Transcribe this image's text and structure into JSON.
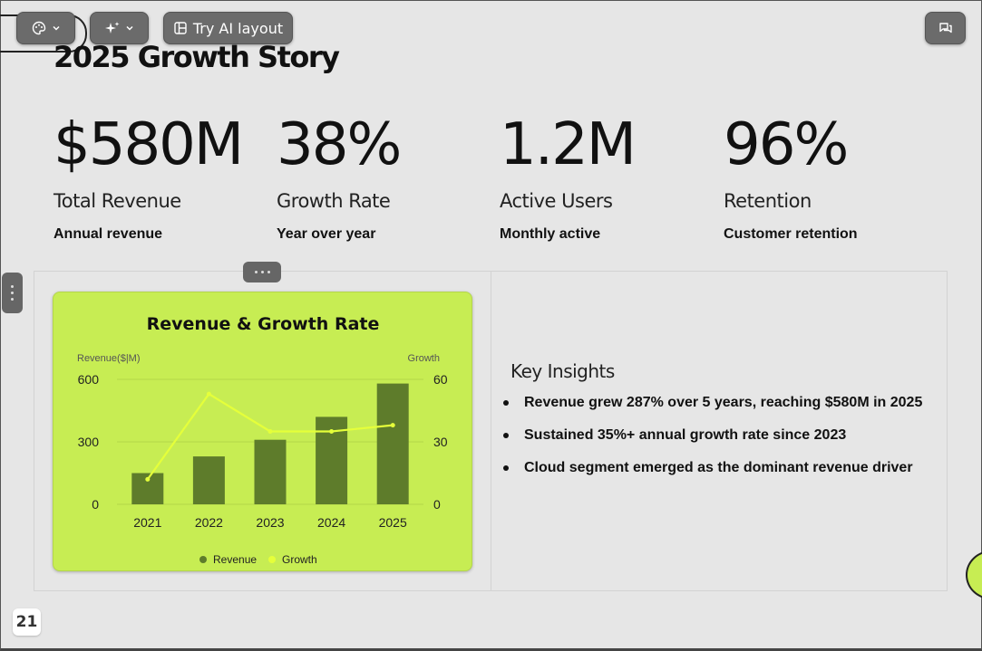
{
  "toolbar": {
    "theme_icon": "palette-icon",
    "ai_icon": "sparkles-icon",
    "chevron_icon": "chevron-down-icon",
    "layout_icon": "layout-icon",
    "try_ai_label": "Try AI layout",
    "comment_icon": "chat-icon"
  },
  "slide": {
    "title": "2025 Growth Story",
    "stats": [
      {
        "value": "$580M",
        "label": "Total Revenue",
        "sub": "Annual revenue"
      },
      {
        "value": "38%",
        "label": "Growth Rate",
        "sub": "Year over year"
      },
      {
        "value": "1.2M",
        "label": "Active Users",
        "sub": "Monthly active"
      },
      {
        "value": "96%",
        "label": "Retention",
        "sub": "Customer retention"
      }
    ],
    "insights": {
      "heading": "Key Insights",
      "items": [
        "Revenue grew 287% over 5 years, reaching $580M in 2025",
        "Sustained 35%+ annual growth rate since 2023",
        "Cloud segment emerged as the dominant revenue driver"
      ]
    },
    "page_number": "21"
  },
  "colors": {
    "card_bg": "#c7ed53",
    "bar": "#5e7c2b",
    "line": "#e5ff3a"
  },
  "chart_data": {
    "type": "bar",
    "title": "Revenue & Growth Rate",
    "categories": [
      "2021",
      "2022",
      "2023",
      "2024",
      "2025"
    ],
    "series": [
      {
        "name": "Revenue",
        "type": "bar",
        "axis": "left",
        "values": [
          150,
          230,
          310,
          420,
          580
        ]
      },
      {
        "name": "Growth",
        "type": "line",
        "axis": "right",
        "values": [
          12,
          53,
          35,
          35,
          38
        ]
      }
    ],
    "ylabel_left": "Revenue($|M)",
    "ylabel_right": "Growth",
    "ylim_left": [
      0,
      600
    ],
    "ylim_right": [
      0,
      60
    ],
    "yticks_left": [
      "0",
      "300",
      "600"
    ],
    "yticks_right": [
      "0",
      "30",
      "60"
    ],
    "grid": true,
    "legend": "bottom"
  }
}
